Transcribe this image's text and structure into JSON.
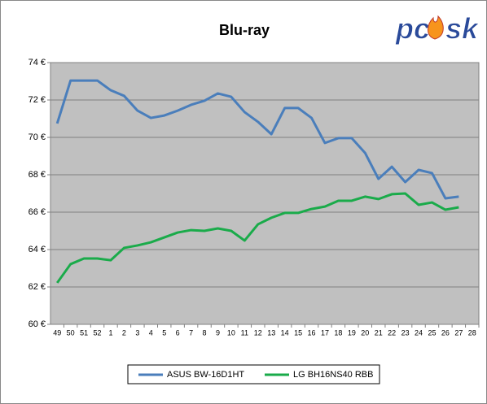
{
  "chart_data": {
    "type": "line",
    "title": "Blu-ray",
    "logo": [
      "pc",
      "sk"
    ],
    "categories": [
      "49",
      "50",
      "51",
      "52",
      "1",
      "2",
      "3",
      "4",
      "5",
      "6",
      "7",
      "8",
      "9",
      "10",
      "11",
      "12",
      "13",
      "14",
      "15",
      "16",
      "17",
      "18",
      "19",
      "20",
      "21",
      "22",
      "23",
      "24",
      "25",
      "26",
      "27",
      "28"
    ],
    "series": [
      {
        "name": "ASUS BW-16D1HT",
        "color": "#4a7ebb",
        "values": [
          70.74,
          73.04,
          73.04,
          73.04,
          72.52,
          72.22,
          71.43,
          71.04,
          71.17,
          71.43,
          71.74,
          71.96,
          72.35,
          72.17,
          71.35,
          70.83,
          70.17,
          71.57,
          71.57,
          71.04,
          69.7,
          69.96,
          69.96,
          69.17,
          67.78,
          68.43,
          67.61,
          68.26,
          68.09,
          66.74,
          66.83,
          null
        ]
      },
      {
        "name": "LG BH16NS40 RBB",
        "color": "#1aab4a",
        "values": [
          62.22,
          63.22,
          63.52,
          63.52,
          63.43,
          64.09,
          64.22,
          64.39,
          64.65,
          64.91,
          65.04,
          65.0,
          65.13,
          65.0,
          64.48,
          65.35,
          65.7,
          65.96,
          65.96,
          66.17,
          66.3,
          66.61,
          66.61,
          66.83,
          66.7,
          66.96,
          67.0,
          66.39,
          66.52,
          66.13,
          66.26,
          null
        ]
      }
    ],
    "ylim": [
      60,
      74
    ],
    "yticks": [
      {
        "value": 60,
        "label": "60 €"
      },
      {
        "value": 62,
        "label": "62 €"
      },
      {
        "value": 64,
        "label": "64 €"
      },
      {
        "value": 66,
        "label": "66 €"
      },
      {
        "value": 68,
        "label": "68 €"
      },
      {
        "value": 70,
        "label": "70 €"
      },
      {
        "value": 72,
        "label": "72 €"
      },
      {
        "value": 74,
        "label": "74 €"
      }
    ],
    "grid": true,
    "plot_background": "#c0c0c0",
    "legend": "bottom"
  }
}
